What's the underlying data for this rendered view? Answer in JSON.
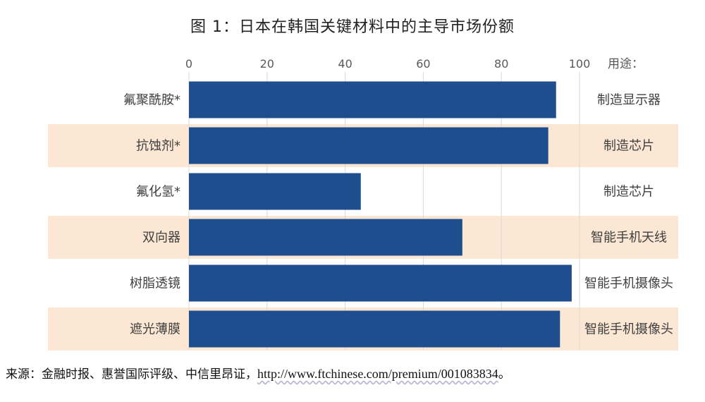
{
  "chart_data": {
    "type": "bar",
    "orientation": "horizontal",
    "title": "图 1：日本在韩国关键材料中的主导市场份额",
    "categories": [
      "氟聚酰胺*",
      "抗蚀剂*",
      "氟化氢*",
      "双向器",
      "树脂透镜",
      "遮光薄膜"
    ],
    "values": [
      94,
      92,
      44,
      70,
      98,
      95
    ],
    "usage_header": "用途：",
    "usages": [
      "制造显示器",
      "制造芯片",
      "制造芯片",
      "智能手机天线",
      "智能手机摄像头",
      "智能手机摄像头"
    ],
    "xlim": [
      0,
      100
    ],
    "xticks": [
      0,
      20,
      40,
      60,
      80,
      100
    ],
    "xaxis_position": "top",
    "grid": true,
    "bar_color": "#1f4e8f",
    "band_color": "#fbe7d3"
  },
  "source": {
    "prefix": "来源：金融时报、惠誉国际评级、中信里昂证，",
    "url": "http://www.ftchinese.com/premium/001083834",
    "suffix": "。"
  }
}
